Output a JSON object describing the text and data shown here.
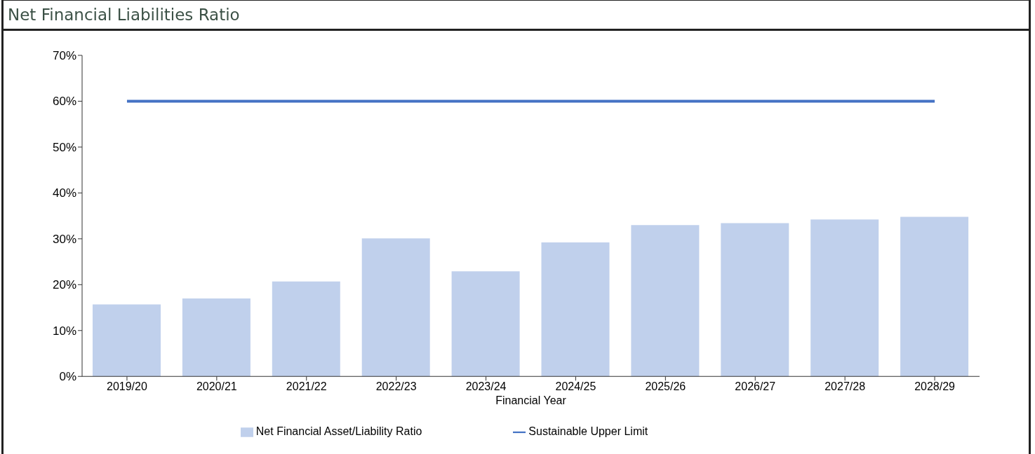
{
  "chart_data": {
    "type": "bar",
    "title": "Net Financial Liabilities Ratio",
    "xlabel": "Financial Year",
    "categories": [
      "2019/20",
      "2020/21",
      "2021/22",
      "2022/23",
      "2023/24",
      "2024/25",
      "2025/26",
      "2026/27",
      "2027/28",
      "2028/29"
    ],
    "series": [
      {
        "name": "Net Financial Asset/Liability Ratio",
        "color": "#c0d0ec",
        "values": [
          15.7,
          17.0,
          20.7,
          30.1,
          22.9,
          29.2,
          33.0,
          33.4,
          34.2,
          34.8
        ]
      },
      {
        "name": "Sustainable Upper Limit",
        "type": "line",
        "color": "#4472c4",
        "values": [
          60,
          60,
          60,
          60,
          60,
          60,
          60,
          60,
          60,
          60
        ]
      }
    ],
    "ylim": [
      0,
      70
    ],
    "yticks": [
      {
        "value": 0,
        "label": "0%"
      },
      {
        "value": 10,
        "label": "10%"
      },
      {
        "value": 20,
        "label": "20%"
      },
      {
        "value": 30,
        "label": "30%"
      },
      {
        "value": 40,
        "label": "40%"
      },
      {
        "value": 50,
        "label": "50%"
      },
      {
        "value": 60,
        "label": "60%"
      },
      {
        "value": 70,
        "label": "70%"
      }
    ],
    "grid": false,
    "legend": "bottom",
    "marker": "none",
    "line_style": "solid"
  }
}
